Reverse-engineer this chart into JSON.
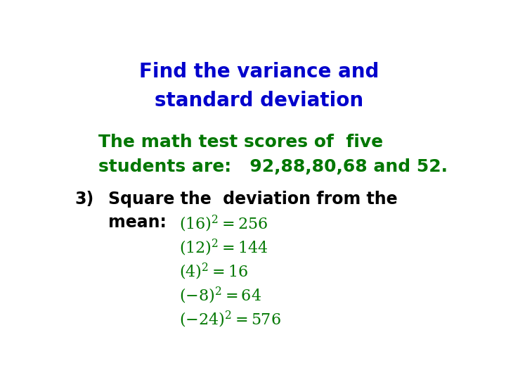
{
  "title_line1": "Find the variance and",
  "title_line2": "standard deviation",
  "title_color": "#0000CC",
  "subtitle_line1": "The math test scores of  five",
  "subtitle_line2": "students are:   92,88,80,68 and 52.",
  "subtitle_color": "#007700",
  "step_label": "3)",
  "step_text": "Square the  deviation from the",
  "step_line2": "mean:",
  "step_color": "#000000",
  "eq_strings": [
    "$(16)^2 = 256$",
    "$(12)^2 =144$",
    "$(4)^2 = 16$",
    "$(-8)^2 = 64$",
    "$(-24)^2 = 576$"
  ],
  "eq_color": "#007700",
  "background_color": "#ffffff",
  "title_fontsize": 20,
  "subtitle_fontsize": 18,
  "step_fontsize": 17,
  "eq_fontsize": 16
}
